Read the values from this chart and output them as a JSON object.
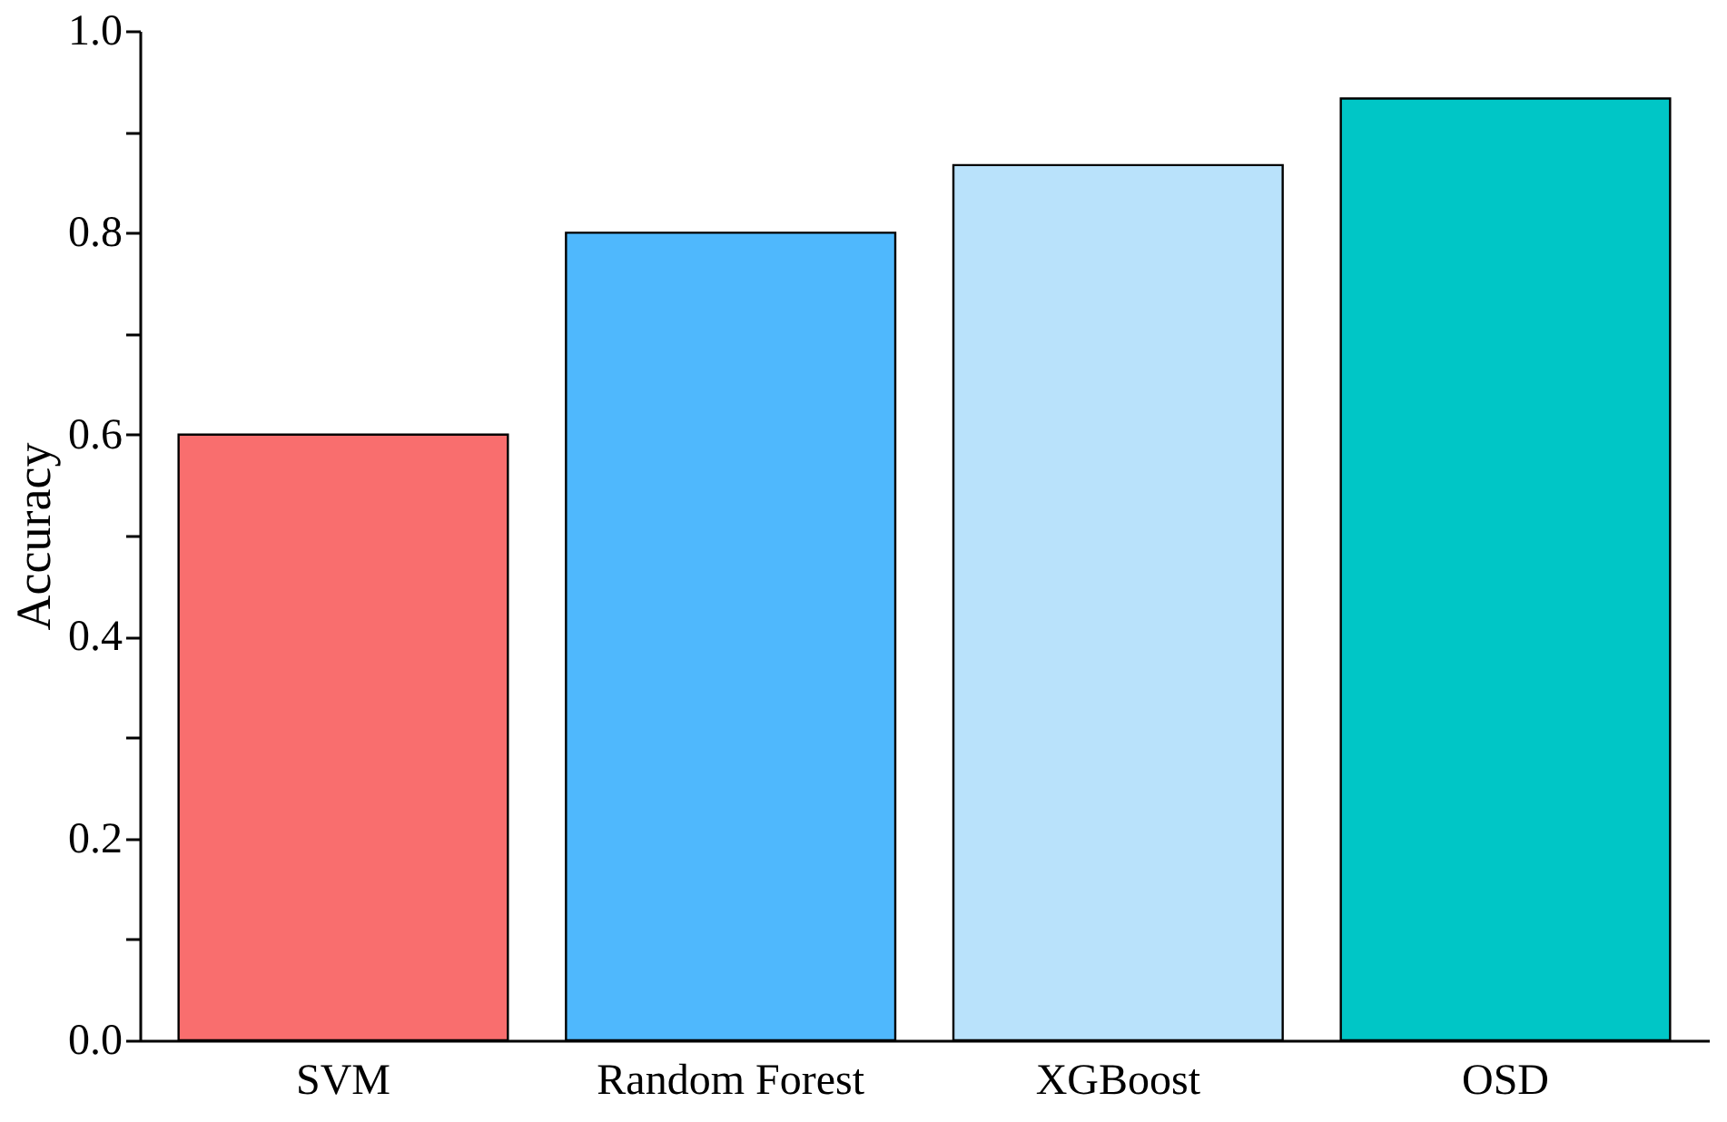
{
  "chart_data": {
    "type": "bar",
    "ylabel": "Accuracy",
    "categories": [
      "SVM",
      "Random Forest",
      "XGBoost",
      "OSD"
    ],
    "values": [
      0.6,
      0.8,
      0.867,
      0.933
    ],
    "colors": [
      "#f96e6e",
      "#4fb8fd",
      "#b9e2fb",
      "#00c6c6"
    ],
    "ylim": [
      0,
      1.0
    ],
    "yticks": [
      {
        "value": 0,
        "label": "0.0"
      },
      {
        "value": 0.1,
        "label": null
      },
      {
        "value": 0.2,
        "label": "0.2"
      },
      {
        "value": 0.3,
        "label": null
      },
      {
        "value": 0.4,
        "label": "0.4"
      },
      {
        "value": 0.5,
        "label": null
      },
      {
        "value": 0.6,
        "label": "0.6"
      },
      {
        "value": 0.7,
        "label": null
      },
      {
        "value": 0.8,
        "label": "0.8"
      },
      {
        "value": 0.9,
        "label": null
      },
      {
        "value": 1.0,
        "label": "1.0"
      }
    ],
    "grid": false
  }
}
